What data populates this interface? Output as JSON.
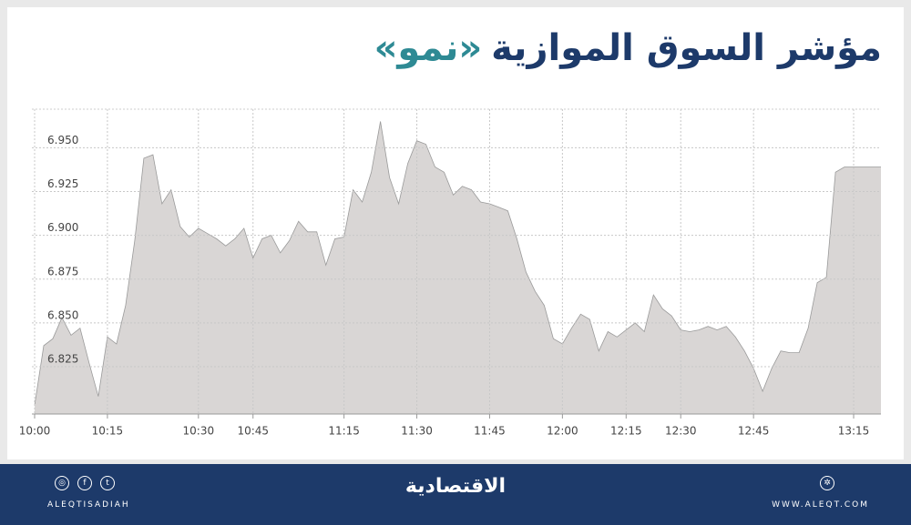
{
  "chart_data": {
    "type": "area",
    "title": "مؤشر السوق الموازية",
    "subtitle": "«نمو»",
    "categories": [
      "10:00",
      null,
      null,
      null,
      null,
      null,
      null,
      null,
      "10:15",
      null,
      null,
      null,
      null,
      null,
      null,
      null,
      null,
      null,
      "10:30",
      null,
      null,
      null,
      null,
      null,
      "10:45",
      null,
      null,
      null,
      null,
      null,
      null,
      null,
      null,
      null,
      "11:15",
      null,
      null,
      null,
      null,
      null,
      null,
      null,
      "11:30",
      null,
      null,
      null,
      null,
      null,
      null,
      null,
      "11:45",
      null,
      null,
      null,
      null,
      null,
      null,
      null,
      "12:00",
      null,
      null,
      null,
      null,
      null,
      null,
      "12:15",
      null,
      null,
      null,
      null,
      null,
      "12:30",
      null,
      null,
      null,
      null,
      null,
      null,
      null,
      "12:45",
      null,
      null,
      null,
      null,
      null,
      null,
      null,
      null,
      null,
      null,
      "13:15",
      null,
      null,
      null
    ],
    "values": [
      6.803,
      6.837,
      6.841,
      6.853,
      6.843,
      6.847,
      6.827,
      6.808,
      6.842,
      6.838,
      6.86,
      6.897,
      6.944,
      6.946,
      6.918,
      6.926,
      6.905,
      6.899,
      6.904,
      6.901,
      6.898,
      6.894,
      6.898,
      6.904,
      6.887,
      6.898,
      6.9,
      6.89,
      6.897,
      6.908,
      6.902,
      6.902,
      6.883,
      6.898,
      6.899,
      6.926,
      6.919,
      6.936,
      6.965,
      6.933,
      6.918,
      6.941,
      6.954,
      6.952,
      6.939,
      6.936,
      6.923,
      6.928,
      6.926,
      6.919,
      6.918,
      6.916,
      6.914,
      6.898,
      6.879,
      6.868,
      6.86,
      6.841,
      6.838,
      6.847,
      6.855,
      6.852,
      6.834,
      6.845,
      6.842,
      6.846,
      6.85,
      6.845,
      6.866,
      6.858,
      6.854,
      6.846,
      6.845,
      6.846,
      6.848,
      6.846,
      6.848,
      6.842,
      6.834,
      6.824,
      6.811,
      6.824,
      6.834,
      6.833,
      6.833,
      6.847,
      6.873,
      6.876,
      6.936,
      6.939,
      6.939,
      6.939,
      6.939,
      6.939
    ],
    "color": "#d9d6d5",
    "line_color": "#9a9a9a",
    "ylim": [
      6.798,
      6.972
    ],
    "yticks": [
      6.825,
      {
        "value": 6.85,
        "label": "6.850"
      },
      6.875,
      {
        "value": 6.9,
        "label": "6.900"
      },
      6.925,
      {
        "value": 6.95,
        "label": "6.950"
      }
    ],
    "grid": true
  },
  "footer": {
    "handle": "ALEQTISADIAH",
    "brand": "الاقتصادية",
    "website": "WWW.ALEQT.COM"
  }
}
